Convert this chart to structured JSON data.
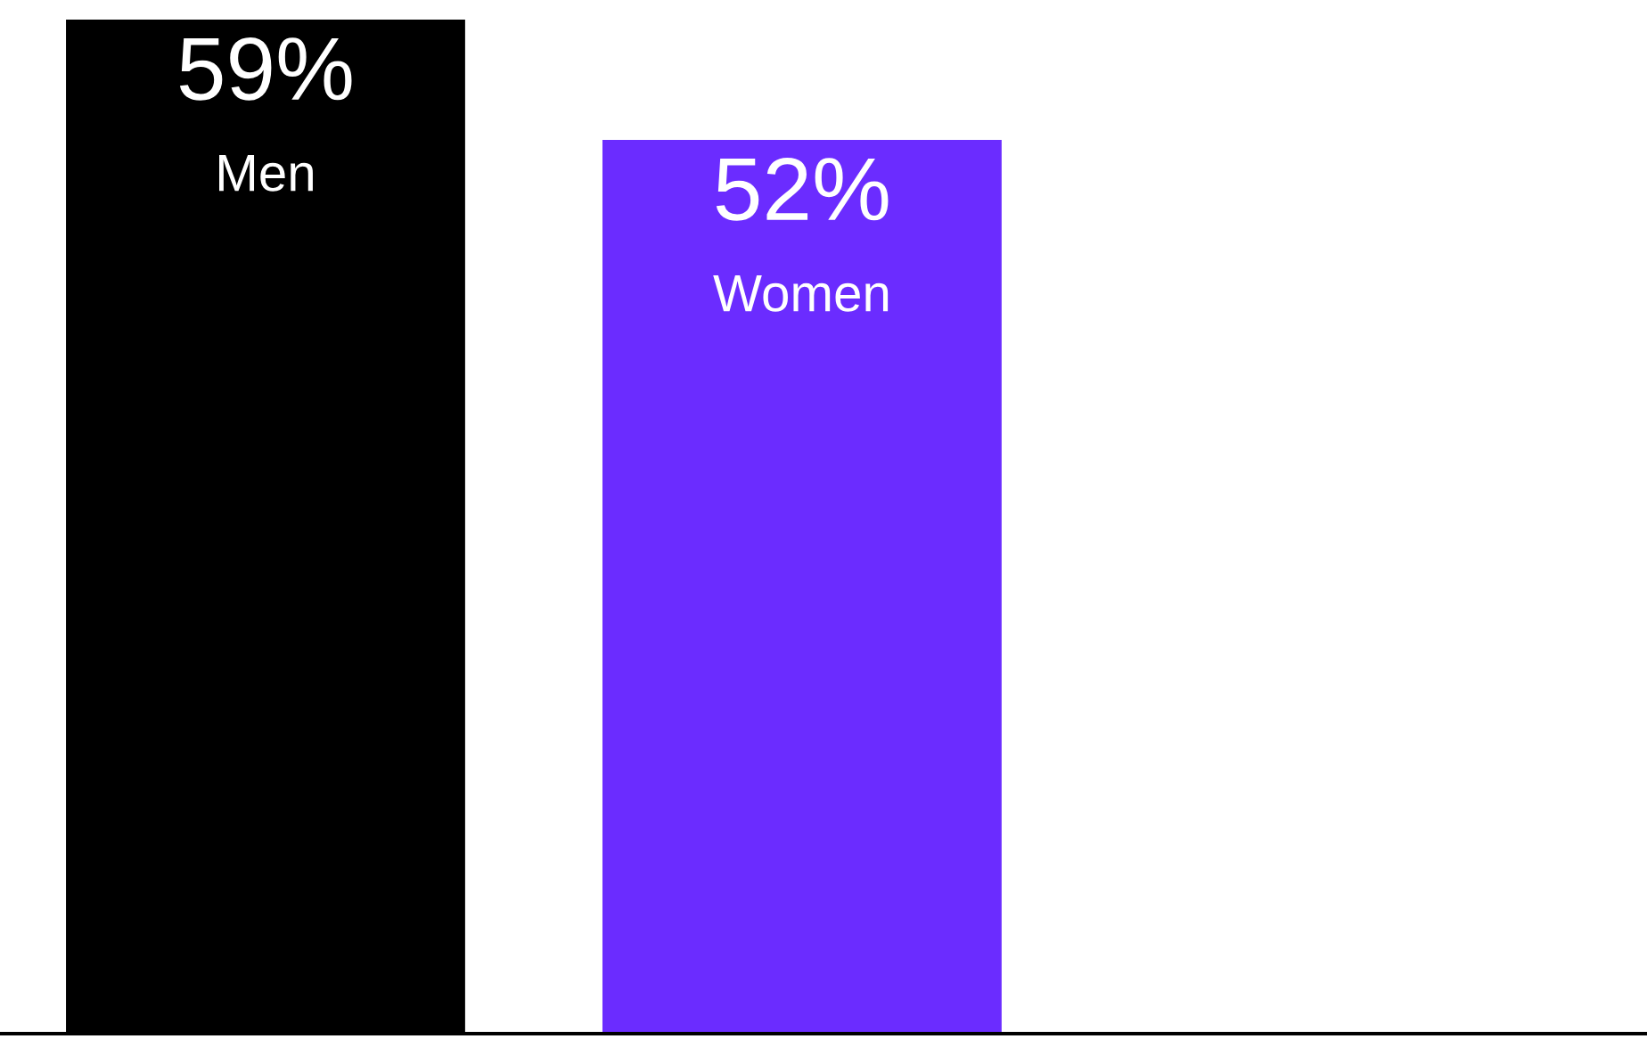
{
  "chart_data": {
    "type": "bar",
    "categories": [
      "Men",
      "Women"
    ],
    "values": [
      59,
      52
    ],
    "colors": [
      "#000000",
      "#6b2cff"
    ],
    "value_labels": [
      "59%",
      "52%"
    ],
    "legend": false
  }
}
